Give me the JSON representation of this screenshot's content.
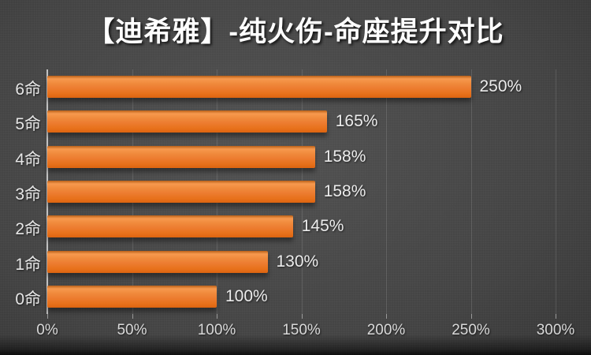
{
  "title": "【迪希雅】-纯火伤-命座提升对比",
  "colors": {
    "bar_accent": "#ED7D31",
    "title_text": "#FFFFFF",
    "axis_text": "#D9D9D9",
    "label_text": "#ECECEC",
    "background_center": "#4E4E4E",
    "background_edge": "#1E1E1E",
    "gridline": "#5A5A5A",
    "axis_line": "#C2C2C2"
  },
  "chart_data": {
    "type": "bar",
    "orientation": "horizontal",
    "title": "【迪希雅】-纯火伤-命座提升对比",
    "categories": [
      "6命",
      "5命",
      "4命",
      "3命",
      "2命",
      "1命",
      "0命"
    ],
    "values": [
      250,
      165,
      158,
      158,
      145,
      130,
      100
    ],
    "value_labels": [
      "250%",
      "165%",
      "158%",
      "158%",
      "145%",
      "130%",
      "100%"
    ],
    "x_tick_labels": [
      "0%",
      "50%",
      "100%",
      "150%",
      "200%",
      "250%",
      "300%"
    ],
    "x_tick_values": [
      0,
      50,
      100,
      150,
      200,
      250,
      300
    ],
    "xlim": [
      0,
      300
    ],
    "xlabel": "",
    "ylabel": "",
    "grid": true,
    "legend": "none"
  }
}
